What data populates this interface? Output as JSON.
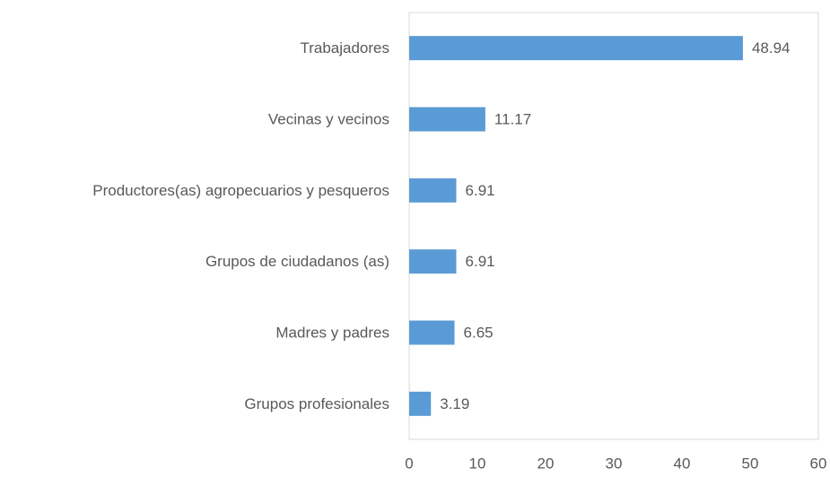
{
  "chart_data": {
    "type": "bar",
    "orientation": "horizontal",
    "categories": [
      "Trabajadores",
      "Vecinas y vecinos",
      "Productores(as) agropecuarios y pesqueros",
      "Grupos de ciudadanos (as)",
      "Madres y padres",
      "Grupos profesionales"
    ],
    "values": [
      48.94,
      11.17,
      6.91,
      6.91,
      6.65,
      3.19
    ],
    "color": "#5b9bd5",
    "xlim": [
      0,
      60
    ],
    "xticks": [
      0,
      10,
      20,
      30,
      40,
      50,
      60
    ],
    "grid": false
  }
}
